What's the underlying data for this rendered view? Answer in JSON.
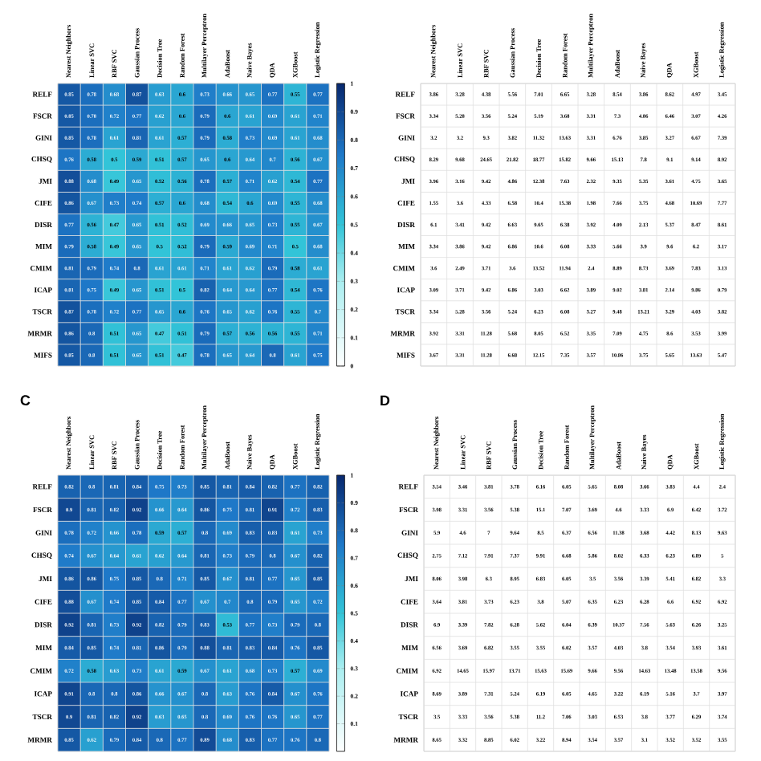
{
  "chart_data": [
    {
      "type": "heatmap",
      "categories": [
        "Nearest Neighbors",
        "Linear SVC",
        "RBF SVC",
        "Gaussian Process",
        "Decision Tree",
        "Random Forest",
        "Multilayer Perceptron",
        "AdaBoost",
        "Naive Bayes",
        "QDA",
        "XGBoost",
        "Logistic Regression"
      ],
      "y_categories": [
        "RELF",
        "FSCR",
        "GINI",
        "CHSQ",
        "JMI",
        "CIFE",
        "DISR",
        "MIM",
        "CMIM",
        "ICAP",
        "TSCR",
        "MRMR",
        "MIFS"
      ],
      "cells": [
        [
          0.85,
          0.78,
          0.68,
          0.87,
          0.63,
          0.6,
          0.73,
          0.66,
          0.65,
          0.77,
          0.55,
          0.77
        ],
        [
          0.85,
          0.78,
          0.72,
          0.77,
          0.62,
          0.6,
          0.79,
          0.6,
          0.61,
          0.69,
          0.61,
          0.71
        ],
        [
          0.85,
          0.78,
          0.61,
          0.81,
          0.61,
          0.57,
          0.79,
          0.58,
          0.73,
          0.69,
          0.61,
          0.68
        ],
        [
          0.76,
          0.58,
          0.5,
          0.59,
          0.51,
          0.57,
          0.65,
          0.6,
          0.64,
          0.7,
          0.56,
          0.67
        ],
        [
          0.88,
          0.68,
          0.49,
          0.65,
          0.52,
          0.56,
          0.78,
          0.57,
          0.71,
          0.62,
          0.54,
          0.77
        ],
        [
          0.86,
          0.67,
          0.73,
          0.74,
          0.57,
          0.6,
          0.68,
          0.54,
          0.6,
          0.69,
          0.55,
          0.68
        ],
        [
          0.77,
          0.56,
          0.47,
          0.65,
          0.51,
          0.52,
          0.69,
          0.66,
          0.65,
          0.73,
          0.55,
          0.67
        ],
        [
          0.79,
          0.58,
          0.49,
          0.65,
          0.5,
          0.52,
          0.79,
          0.59,
          0.69,
          0.71,
          0.5,
          0.68
        ],
        [
          0.81,
          0.79,
          0.74,
          0.8,
          0.61,
          0.61,
          0.71,
          0.61,
          0.62,
          0.79,
          0.58,
          0.61
        ],
        [
          0.81,
          0.75,
          0.49,
          0.65,
          0.51,
          0.5,
          0.82,
          0.64,
          0.64,
          0.77,
          0.54,
          0.76
        ],
        [
          0.87,
          0.78,
          0.72,
          0.77,
          0.65,
          0.6,
          0.76,
          0.65,
          0.62,
          0.76,
          0.55,
          0.7
        ],
        [
          0.86,
          0.8,
          0.51,
          0.65,
          0.47,
          0.51,
          0.79,
          0.57,
          0.56,
          0.56,
          0.55,
          0.71
        ],
        [
          0.85,
          0.8,
          0.51,
          0.65,
          0.51,
          0.47,
          0.78,
          0.65,
          0.64,
          0.8,
          0.61,
          0.75
        ]
      ],
      "clim": [
        0,
        1
      ],
      "cticks": [
        0,
        0.1,
        0.2,
        0.3,
        0.4,
        0.5,
        0.6,
        0.7,
        0.8,
        0.9,
        1
      ],
      "data_labels": true
    },
    {
      "type": "heatmap",
      "categories": [
        "Nearest Neighbors",
        "Linear SVC",
        "RBF SVC",
        "Gaussian Process",
        "Decision Tree",
        "Random Forest",
        "Multilayer Perceptron",
        "AdaBoost",
        "Naive Bayes",
        "QDA",
        "XGBoost",
        "Logistic Regression"
      ],
      "y_categories": [
        "RELF",
        "FSCR",
        "GINI",
        "CHSQ",
        "JMI",
        "CIFE",
        "DISR",
        "MIM",
        "CMIM",
        "ICAP",
        "TSCR",
        "MRMR",
        "MIFS"
      ],
      "cells": [
        [
          3.86,
          3.28,
          4.38,
          5.56,
          7.01,
          6.65,
          3.28,
          8.54,
          3.86,
          8.62,
          4.97,
          3.45
        ],
        [
          3.34,
          5.28,
          3.56,
          5.24,
          5.19,
          3.68,
          3.31,
          7.3,
          4.86,
          6.46,
          3.07,
          4.26
        ],
        [
          3.2,
          3.2,
          9.3,
          3.82,
          11.32,
          13.63,
          3.31,
          6.76,
          3.85,
          3.27,
          6.67,
          7.39
        ],
        [
          8.29,
          9.68,
          24.65,
          21.82,
          18.77,
          15.82,
          9.66,
          15.13,
          7.8,
          9.1,
          9.14,
          8.92
        ],
        [
          3.96,
          3.16,
          9.42,
          4.86,
          12.38,
          7.63,
          2.32,
          9.35,
          5.35,
          3.61,
          4.75,
          3.65
        ],
        [
          1.55,
          3.6,
          4.33,
          6.58,
          10.4,
          15.38,
          1.98,
          7.66,
          3.75,
          4.68,
          10.69,
          7.77
        ],
        [
          6.1,
          3.41,
          9.42,
          6.63,
          9.65,
          6.38,
          3.92,
          4.09,
          2.13,
          5.37,
          8.47,
          8.61
        ],
        [
          3.34,
          3.86,
          9.42,
          6.86,
          10.6,
          6.08,
          3.33,
          5.66,
          3.9,
          9.6,
          6.2,
          3.17
        ],
        [
          3.6,
          2.49,
          3.71,
          3.6,
          13.52,
          11.94,
          2.4,
          8.89,
          8.73,
          3.69,
          7.83,
          3.13
        ],
        [
          3.09,
          3.71,
          9.42,
          6.86,
          3.03,
          6.62,
          3.89,
          9.02,
          3.81,
          2.14,
          9.86,
          0.79
        ],
        [
          3.34,
          5.28,
          3.56,
          5.24,
          6.23,
          6.08,
          3.27,
          9.48,
          13.21,
          3.29,
          4.03,
          3.82
        ],
        [
          3.92,
          3.31,
          11.28,
          5.68,
          8.05,
          6.52,
          3.35,
          7.09,
          4.75,
          8.6,
          3.53,
          3.99
        ],
        [
          3.67,
          3.31,
          11.28,
          6.68,
          12.15,
          7.35,
          3.57,
          10.86,
          3.75,
          5.65,
          13.63,
          5.47
        ]
      ],
      "data_labels": true
    },
    {
      "type": "heatmap",
      "title": "C",
      "categories": [
        "Nearest Neighbors",
        "Linear SVC",
        "RBF SVC",
        "Gaussian Process",
        "Decision Tree",
        "Random Forest",
        "Multilayer Perceptron",
        "AdaBoost",
        "Naive Bayes",
        "QDA",
        "XGBoost",
        "Logistic Regression"
      ],
      "y_categories": [
        "RELF",
        "FSCR",
        "GINI",
        "CHSQ",
        "JMI",
        "CIFE",
        "DISR",
        "MIM",
        "CMIM",
        "ICAP",
        "TSCR",
        "MRMR"
      ],
      "cells": [
        [
          0.82,
          0.8,
          0.81,
          0.84,
          0.75,
          0.73,
          0.85,
          0.81,
          0.84,
          0.82,
          0.77,
          0.82
        ],
        [
          0.9,
          0.81,
          0.82,
          0.92,
          0.66,
          0.64,
          0.86,
          0.75,
          0.81,
          0.91,
          0.72,
          0.83
        ],
        [
          0.78,
          0.72,
          0.66,
          0.78,
          0.59,
          0.57,
          0.8,
          0.69,
          0.83,
          0.83,
          0.61,
          0.73
        ],
        [
          0.74,
          0.67,
          0.64,
          0.61,
          0.62,
          0.64,
          0.81,
          0.73,
          0.79,
          0.8,
          0.67,
          0.82
        ],
        [
          0.86,
          0.86,
          0.75,
          0.85,
          0.8,
          0.71,
          0.85,
          0.67,
          0.81,
          0.77,
          0.65,
          0.85
        ],
        [
          0.88,
          0.67,
          0.74,
          0.85,
          0.84,
          0.77,
          0.67,
          0.7,
          0.8,
          0.79,
          0.65,
          0.72
        ],
        [
          0.92,
          0.81,
          0.73,
          0.92,
          0.82,
          0.79,
          0.83,
          0.53,
          0.77,
          0.73,
          0.79,
          0.8
        ],
        [
          0.84,
          0.85,
          0.74,
          0.81,
          0.86,
          0.79,
          0.88,
          0.81,
          0.83,
          0.84,
          0.76,
          0.85
        ],
        [
          0.72,
          0.58,
          0.63,
          0.73,
          0.61,
          0.59,
          0.67,
          0.61,
          0.68,
          0.73,
          0.57,
          0.69
        ],
        [
          0.91,
          0.8,
          0.8,
          0.86,
          0.66,
          0.67,
          0.8,
          0.63,
          0.76,
          0.84,
          0.67,
          0.76
        ],
        [
          0.9,
          0.81,
          0.82,
          0.92,
          0.63,
          0.65,
          0.8,
          0.69,
          0.76,
          0.76,
          0.65,
          0.77
        ],
        [
          0.85,
          0.62,
          0.79,
          0.84,
          0.8,
          0.77,
          0.89,
          0.68,
          0.83,
          0.77,
          0.76,
          0.8
        ]
      ],
      "clim": [
        0,
        1
      ],
      "cticks": [
        0.1,
        0.2,
        0.3,
        0.4,
        0.5,
        0.6,
        0.7,
        0.8,
        0.9,
        1
      ],
      "data_labels": true
    },
    {
      "type": "heatmap",
      "title": "D",
      "categories": [
        "Nearest Neighbors",
        "Linear SVC",
        "RBF SVC",
        "Gaussian Process",
        "Decision Tree",
        "Random Forest",
        "Multilayer Perceptron",
        "AdaBoost",
        "Naive Bayes",
        "QDA",
        "XGBoost",
        "Logistic Regression"
      ],
      "y_categories": [
        "RELF",
        "FSCR",
        "GINI",
        "CHSQ",
        "JMI",
        "CIFE",
        "DISR",
        "MIM",
        "CMIM",
        "ICAP",
        "TSCR",
        "MRMR"
      ],
      "cells": [
        [
          3.54,
          3.46,
          3.81,
          3.78,
          6.16,
          6.05,
          5.65,
          8.08,
          3.66,
          3.83,
          4.4,
          2.4
        ],
        [
          3.98,
          3.31,
          3.56,
          5.38,
          15.1,
          7.07,
          3.69,
          4.6,
          3.33,
          6.9,
          6.42,
          3.72
        ],
        [
          5.9,
          4.6,
          7,
          9.64,
          8.5,
          6.37,
          6.56,
          11.38,
          3.68,
          4.42,
          8.13,
          9.63
        ],
        [
          2.75,
          7.12,
          7.91,
          7.37,
          9.91,
          6.68,
          5.86,
          8.02,
          6.33,
          6.23,
          6.89,
          5
        ],
        [
          8.06,
          3.98,
          6.3,
          8.95,
          6.83,
          6.05,
          3.5,
          3.56,
          3.39,
          5.41,
          6.82,
          3.3
        ],
        [
          3.64,
          3.81,
          3.73,
          6.23,
          3.8,
          5.07,
          6.35,
          6.23,
          6.28,
          6.6,
          6.92,
          6.92
        ],
        [
          6.9,
          3.39,
          7.82,
          6.28,
          5.62,
          6.04,
          6.39,
          10.37,
          7.56,
          5.63,
          6.26,
          3.25
        ],
        [
          6.56,
          3.69,
          6.82,
          3.55,
          3.55,
          6.02,
          3.57,
          4.03,
          3.8,
          3.54,
          3.93,
          3.61
        ],
        [
          6.92,
          14.65,
          15.97,
          13.71,
          15.63,
          15.69,
          9.66,
          9.56,
          14.63,
          13.48,
          13.58,
          9.56
        ],
        [
          8.69,
          3.89,
          7.31,
          5.24,
          6.19,
          6.05,
          4.65,
          3.22,
          6.19,
          5.16,
          3.7,
          3.97
        ],
        [
          3.5,
          3.33,
          3.56,
          5.38,
          11.2,
          7.06,
          3.03,
          6.53,
          3.8,
          3.77,
          6.29,
          3.74
        ],
        [
          8.65,
          3.32,
          8.85,
          6.02,
          3.22,
          8.94,
          3.54,
          3.57,
          3.1,
          3.52,
          3.52,
          3.55
        ]
      ],
      "data_labels": true
    }
  ]
}
